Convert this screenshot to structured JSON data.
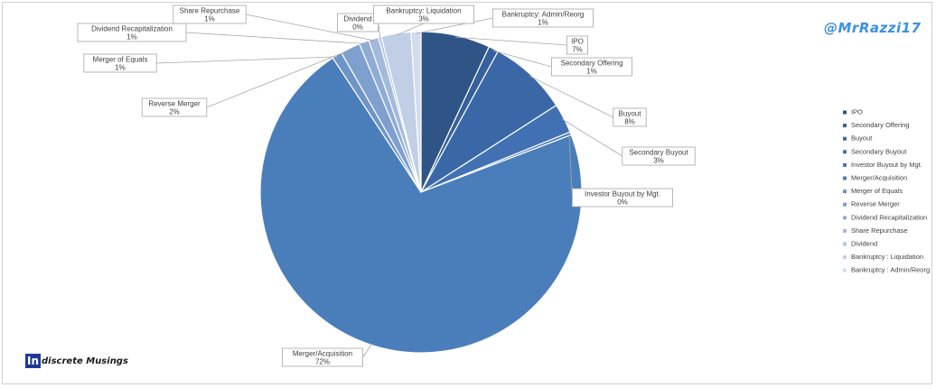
{
  "branding": {
    "handle": "@MrRazzi17",
    "logo_mark": "In",
    "logo_rest": "discrete Musings"
  },
  "chart_data": {
    "type": "pie",
    "categories": [
      "IPO",
      "Secondary Offering",
      "Buyout",
      "Secondary Buyout",
      "Investor Buyout by Mgt.",
      "Merger/Acquisition",
      "Merger of Equals",
      "Reverse Merger",
      "Dividend Recapitalization",
      "Share Repurchase",
      "Dividend",
      "Bankruptcy: Liquidation",
      "Bankruptcy: Admin/Reorg"
    ],
    "values": [
      7,
      1,
      8,
      3,
      0.3,
      72,
      1,
      2,
      1,
      1,
      0.3,
      3,
      1
    ],
    "value_labels": [
      "7%",
      "1%",
      "8%",
      "3%",
      "0%",
      "72%",
      "1%",
      "2%",
      "1%",
      "1%",
      "0%",
      "3%",
      "1%"
    ],
    "colors": [
      "#2e5585",
      "#35609a",
      "#3a68a6",
      "#4171b2",
      "#4677b8",
      "#4a7ebb",
      "#6f94c8",
      "#7f9fcf",
      "#90acd5",
      "#a3badb",
      "#b1c4e0",
      "#c1cfe6",
      "#d3dcee"
    ],
    "legend_labels": [
      "IPO",
      "Secondary Offering",
      "Buyout",
      "Secondary Buyout",
      "Investor Buyout by Mgt.",
      "Merger/Acquisition",
      "Merger of Equals",
      "Reverse Merger",
      "Dividend Recapitalization",
      "Share Repurchase",
      "Dividend",
      "Bankruptcy : Liquidation",
      "Bankruptcy : Admin/Reorg"
    ],
    "legend_position": "right",
    "start_angle": "12 o'clock, clockwise"
  }
}
